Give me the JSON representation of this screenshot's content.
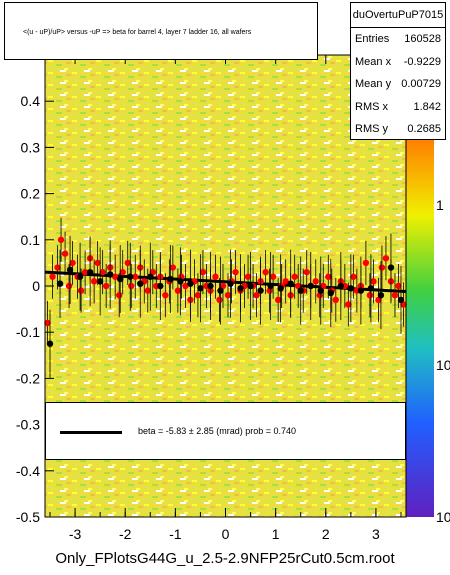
{
  "title": "<(u - uP)/uP> versus -uP => beta for barrel 4, layer 7 ladder 16, all wafers",
  "stats": {
    "name": "duOvertuPuP7015",
    "rows": [
      {
        "key": "Entries",
        "value": "160528"
      },
      {
        "key": "Mean x",
        "value": "-0.9229"
      },
      {
        "key": "Mean y",
        "value": "0.00729"
      },
      {
        "key": "RMS x",
        "value": "1.842"
      },
      {
        "key": "RMS y",
        "value": "0.2685"
      }
    ]
  },
  "fit": {
    "label": "beta =    -5.83  ±   2.85 (mrad) prob = 0.740"
  },
  "footer": "Only_FPlotsG44G_u_2.5-2.9NFP25rCut0.5cm.root",
  "colors": {
    "marker_red": "#ff0000",
    "marker_black": "#000000",
    "background_fill": "#f0e040"
  },
  "chart_data": {
    "type": "scatter",
    "x_ticks": [
      "-3",
      "-2",
      "-1",
      "0",
      "1",
      "2",
      "3"
    ],
    "y_ticks": [
      "-0.5",
      "-0.4",
      "-0.3",
      "-0.2",
      "-0.1",
      "0",
      "0.1",
      "0.2",
      "0.3",
      "0.4"
    ],
    "z_ticks": [
      "1",
      "10",
      "10"
    ],
    "xlim": [
      -3.6,
      3.6
    ],
    "ylim": [
      -0.5,
      0.5
    ],
    "zlog": true,
    "fit_line": {
      "x": [
        -3.6,
        3.6
      ],
      "y": [
        0.03,
        -0.012
      ]
    },
    "series": [
      {
        "marker": "red",
        "x": [
          -3.55,
          -3.45,
          -3.35,
          -3.28,
          -3.2,
          -3.12,
          -3.05,
          -2.95,
          -2.88,
          -2.8,
          -2.7,
          -2.62,
          -2.55,
          -2.45,
          -2.38,
          -2.3,
          -2.2,
          -2.12,
          -2.05,
          -1.95,
          -1.88,
          -1.8,
          -1.7,
          -1.62,
          -1.55,
          -1.45,
          -1.38,
          -1.3,
          -1.2,
          -1.12,
          -1.05,
          -0.95,
          -0.88,
          -0.8,
          -0.7,
          -0.62,
          -0.55,
          -0.45,
          -0.38,
          -0.3,
          -0.2,
          -0.12,
          -0.05,
          0.05,
          0.12,
          0.2,
          0.3,
          0.38,
          0.45,
          0.55,
          0.62,
          0.7,
          0.8,
          0.88,
          0.95,
          1.05,
          1.12,
          1.2,
          1.3,
          1.38,
          1.45,
          1.55,
          1.62,
          1.7,
          1.8,
          1.88,
          1.95,
          2.05,
          2.12,
          2.2,
          2.3,
          2.38,
          2.45,
          2.55,
          2.62,
          2.7,
          2.8,
          2.88,
          2.95,
          3.05,
          3.12,
          3.2,
          3.3,
          3.38,
          3.45,
          3.55
        ],
        "y": [
          -0.08,
          0.02,
          0.04,
          0.1,
          0.07,
          0.0,
          0.05,
          0.02,
          -0.01,
          0.03,
          0.06,
          0.01,
          0.05,
          0.03,
          0.0,
          0.04,
          0.02,
          -0.02,
          0.03,
          0.05,
          0.0,
          0.02,
          0.04,
          0.01,
          -0.01,
          0.03,
          0.0,
          0.02,
          -0.02,
          0.01,
          0.04,
          -0.01,
          0.02,
          0.0,
          -0.03,
          0.01,
          -0.02,
          0.03,
          0.0,
          -0.01,
          0.02,
          -0.03,
          0.0,
          -0.02,
          0.01,
          0.03,
          -0.01,
          0.0,
          0.02,
          0.0,
          -0.02,
          0.01,
          0.03,
          -0.01,
          0.02,
          -0.03,
          0.0,
          0.01,
          -0.02,
          0.02,
          0.0,
          -0.01,
          0.03,
          0.0,
          0.01,
          -0.02,
          0.0,
          0.02,
          -0.01,
          -0.03,
          0.01,
          0.0,
          -0.04,
          0.02,
          -0.01,
          0.0,
          0.05,
          -0.02,
          0.01,
          -0.03,
          0.04,
          0.06,
          0.01,
          -0.02,
          0.0,
          -0.04
        ]
      },
      {
        "marker": "black",
        "x": [
          -3.5,
          -3.3,
          -3.1,
          -2.9,
          -2.7,
          -2.5,
          -2.3,
          -2.1,
          -1.9,
          -1.7,
          -1.5,
          -1.3,
          -1.1,
          -0.9,
          -0.7,
          -0.5,
          -0.3,
          -0.1,
          0.1,
          0.3,
          0.5,
          0.7,
          0.9,
          1.1,
          1.3,
          1.5,
          1.7,
          1.9,
          2.1,
          2.3,
          2.5,
          2.7,
          2.9,
          3.1,
          3.3,
          3.5
        ],
        "y": [
          -0.125,
          0.005,
          0.035,
          0.02,
          0.03,
          0.01,
          0.025,
          0.015,
          0.02,
          0.005,
          0.02,
          0.0,
          0.015,
          0.01,
          0.005,
          -0.005,
          0.0,
          -0.01,
          0.005,
          -0.005,
          0.0,
          -0.01,
          0.0,
          -0.005,
          0.005,
          -0.01,
          0.0,
          -0.01,
          -0.015,
          0.0,
          -0.005,
          -0.01,
          -0.005,
          -0.02,
          0.04,
          -0.03
        ]
      }
    ]
  }
}
